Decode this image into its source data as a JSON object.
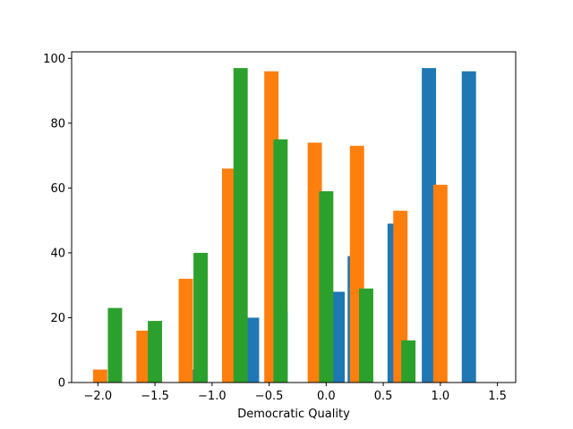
{
  "chart_data": {
    "type": "bar",
    "xlabel": "Democratic Quality",
    "ylabel": "",
    "title": "",
    "xlim": [
      -2.23,
      1.66
    ],
    "ylim": [
      0,
      102
    ],
    "xticks": [
      -2.0,
      -1.5,
      -1.0,
      -0.5,
      0.0,
      0.5,
      1.0,
      1.5
    ],
    "xtick_labels": [
      "−2.0",
      "−1.5",
      "−1.0",
      "−0.5",
      "0.0",
      "0.5",
      "1.0",
      "1.5"
    ],
    "yticks": [
      0,
      20,
      40,
      60,
      80,
      100
    ],
    "ytick_labels": [
      "0",
      "20",
      "40",
      "60",
      "80",
      "100"
    ],
    "bin_width": 0.5,
    "bin_lefts": [
      -2.0,
      -1.5,
      -1.0,
      -0.5,
      0.0,
      0.5,
      1.0
    ],
    "series": [
      {
        "color": "#1f77b4",
        "bars": [
          {
            "x": -1.15,
            "value": 4
          },
          {
            "x": -0.65,
            "value": 20
          },
          {
            "x": -0.4,
            "value": 22
          },
          {
            "x": 0.1,
            "value": 28
          },
          {
            "x": 0.25,
            "value": 39
          },
          {
            "x": 0.6,
            "value": 49
          },
          {
            "x": 0.9,
            "value": 97
          },
          {
            "x": 1.25,
            "value": 96
          }
        ]
      },
      {
        "color": "#ff7f0e",
        "bars": [
          {
            "x": -1.98,
            "value": 4
          },
          {
            "x": -1.6,
            "value": 16
          },
          {
            "x": -1.23,
            "value": 32
          },
          {
            "x": -0.85,
            "value": 66
          },
          {
            "x": -0.48,
            "value": 96
          },
          {
            "x": -0.1,
            "value": 74
          },
          {
            "x": 0.27,
            "value": 73
          },
          {
            "x": 0.65,
            "value": 53
          },
          {
            "x": 1.0,
            "value": 61
          }
        ]
      },
      {
        "color": "#2ca02c",
        "bars": [
          {
            "x": -1.85,
            "value": 23
          },
          {
            "x": -1.5,
            "value": 19
          },
          {
            "x": -1.1,
            "value": 40
          },
          {
            "x": -0.75,
            "value": 97
          },
          {
            "x": -0.4,
            "value": 75
          },
          {
            "x": 0.0,
            "value": 59
          },
          {
            "x": 0.35,
            "value": 29
          },
          {
            "x": 0.72,
            "value": 13
          }
        ]
      }
    ]
  }
}
